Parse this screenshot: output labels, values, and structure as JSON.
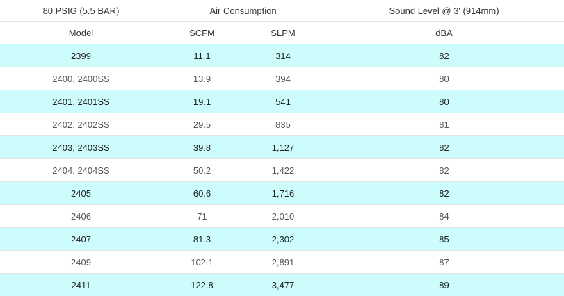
{
  "header": {
    "pressure": "80 PSIG (5.5 BAR)",
    "air_consumption": "Air Consumption",
    "sound_level": "Sound Level @ 3' (914mm)"
  },
  "columns": [
    "Model",
    "SCFM",
    "SLPM",
    "dBA"
  ],
  "colors": {
    "row_highlight": "#ccfcfc",
    "row_plain": "#ffffff",
    "divider": "#e4e4e4",
    "text": "#333333"
  },
  "rows": [
    {
      "model": "2399",
      "scfm": "11.1",
      "slpm": "314",
      "dba": "82"
    },
    {
      "model": "2400, 2400SS",
      "scfm": "13.9",
      "slpm": "394",
      "dba": "80"
    },
    {
      "model": "2401, 2401SS",
      "scfm": "19.1",
      "slpm": "541",
      "dba": "80"
    },
    {
      "model": "2402, 2402SS",
      "scfm": "29.5",
      "slpm": "835",
      "dba": "81"
    },
    {
      "model": "2403, 2403SS",
      "scfm": "39.8",
      "slpm": "1,127",
      "dba": "82"
    },
    {
      "model": "2404, 2404SS",
      "scfm": "50.2",
      "slpm": "1,422",
      "dba": "82"
    },
    {
      "model": "2405",
      "scfm": "60.6",
      "slpm": "1,716",
      "dba": "82"
    },
    {
      "model": "2406",
      "scfm": "71",
      "slpm": "2,010",
      "dba": "84"
    },
    {
      "model": "2407",
      "scfm": "81.3",
      "slpm": "2,302",
      "dba": "85"
    },
    {
      "model": "2409",
      "scfm": "102.1",
      "slpm": "2,891",
      "dba": "87"
    },
    {
      "model": "2411",
      "scfm": "122.8",
      "slpm": "3,477",
      "dba": "89"
    }
  ]
}
